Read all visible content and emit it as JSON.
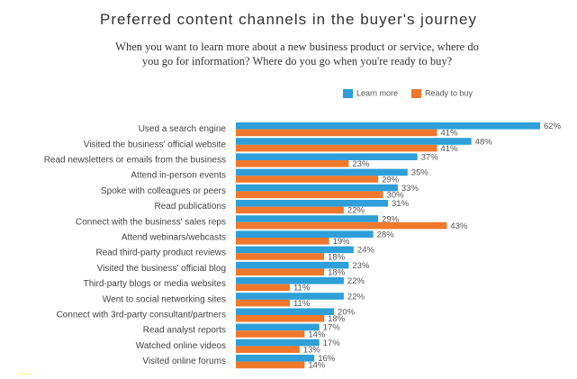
{
  "chart_data": {
    "type": "bar",
    "title": "Preferred content channels in the buyer's journey",
    "subtitle_lines": [
      "When you want to learn more about a new business product or service, where do",
      "you go for information? Where do you go when you're ready to buy?"
    ],
    "value_suffix": "%",
    "xlim": [
      0,
      62
    ],
    "grid": false,
    "legend_position": "top-right",
    "categories": [
      "Used a search engine",
      "Visited the business' official website",
      "Read newsletters or emails from the business",
      "Attend in-person events",
      "Spoke with colleagues or peers",
      "Read publications",
      "Connect with the business' sales reps",
      "Attend webinars/webcasts",
      "Read third-party product reviews",
      "Visited the business' official blog",
      "Third-party blogs or media websites",
      "Went to social networking sites",
      "Connect with 3rd-party consultant/partners",
      "Read analyst reports",
      "Watched online videos",
      "Visited online forums"
    ],
    "series": [
      {
        "name": "Learn more",
        "color": "#2e9fd8",
        "values": [
          62,
          48,
          37,
          35,
          33,
          31,
          29,
          28,
          24,
          23,
          22,
          22,
          20,
          17,
          17,
          16
        ]
      },
      {
        "name": "Ready to buy",
        "color": "#f0782d",
        "values": [
          41,
          41,
          23,
          29,
          30,
          22,
          43,
          19,
          18,
          18,
          11,
          11,
          18,
          14,
          13,
          14
        ]
      }
    ]
  }
}
